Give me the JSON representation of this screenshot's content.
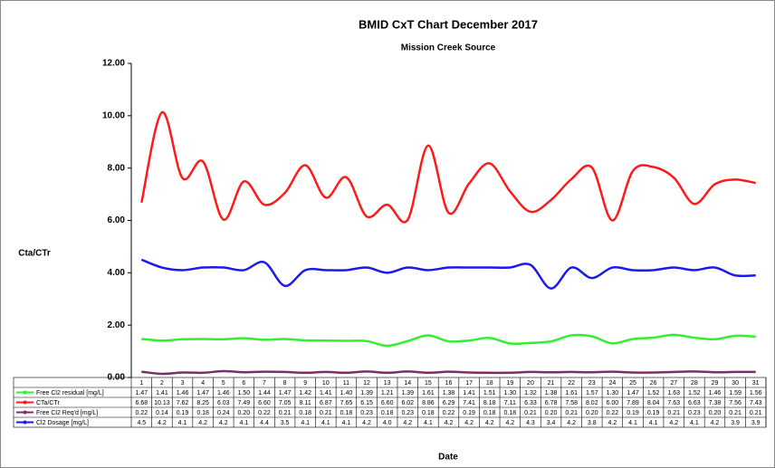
{
  "chart_data": {
    "type": "line",
    "title": "BMID CxT Chart December 2017",
    "subtitle": "Mission Creek Source",
    "y_label": "Cta/CTr",
    "x_label": "Date",
    "grid": false,
    "ylim": [
      0,
      12
    ],
    "yticks": [
      {
        "value": 0,
        "label": "0.00"
      },
      {
        "value": 2,
        "label": "2.00"
      },
      {
        "value": 4,
        "label": "4.00"
      },
      {
        "value": 6,
        "label": "6.00"
      },
      {
        "value": 8,
        "label": "8.00"
      },
      {
        "value": 10,
        "label": "10.00"
      },
      {
        "value": 12,
        "label": "12.00"
      }
    ],
    "categories": [
      "1",
      "2",
      "3",
      "4",
      "5",
      "6",
      "7",
      "8",
      "9",
      "10",
      "11",
      "12",
      "13",
      "14",
      "15",
      "16",
      "17",
      "18",
      "19",
      "20",
      "21",
      "22",
      "23",
      "24",
      "25",
      "26",
      "27",
      "28",
      "29",
      "30",
      "31"
    ],
    "series": [
      {
        "name": "Free Cl2 residual [mg/L]",
        "color": "#33ee33",
        "values": [
          1.47,
          1.41,
          1.46,
          1.47,
          1.46,
          1.5,
          1.44,
          1.47,
          1.42,
          1.41,
          1.4,
          1.39,
          1.21,
          1.39,
          1.61,
          1.38,
          1.41,
          1.51,
          1.3,
          1.32,
          1.38,
          1.61,
          1.57,
          1.3,
          1.47,
          1.52,
          1.63,
          1.52,
          1.46,
          1.59,
          1.56
        ],
        "value_labels": [
          "1.47",
          "1.41",
          "1.46",
          "1.47",
          "1.46",
          "1.50",
          "1.44",
          "1.47",
          "1.42",
          "1.41",
          "1.40",
          "1.39",
          "1.21",
          "1.39",
          "1.61",
          "1.38",
          "1.41",
          "1.51",
          "1.30",
          "1.32",
          "1.38",
          "1.61",
          "1.57",
          "1.30",
          "1.47",
          "1.52",
          "1.63",
          "1.52",
          "1.46",
          "1.59",
          "1.56"
        ]
      },
      {
        "name": "CTa/CTr",
        "color": "#ff1a1a",
        "values": [
          6.68,
          10.13,
          7.62,
          8.25,
          6.03,
          7.49,
          6.6,
          7.05,
          8.11,
          6.87,
          7.65,
          6.15,
          6.6,
          6.02,
          8.86,
          6.29,
          7.41,
          8.18,
          7.11,
          6.33,
          6.78,
          7.58,
          8.02,
          6.0,
          7.89,
          8.04,
          7.63,
          6.63,
          7.38,
          7.56,
          7.43
        ],
        "value_labels": [
          "6.68",
          "10.13",
          "7.62",
          "8.25",
          "6.03",
          "7.49",
          "6.60",
          "7.05",
          "8.11",
          "6.87",
          "7.65",
          "6.15",
          "6.60",
          "6.02",
          "8.86",
          "6.29",
          "7.41",
          "8.18",
          "7.11",
          "6.33",
          "6.78",
          "7.58",
          "8.02",
          "6.00",
          "7.89",
          "8.04",
          "7.63",
          "6.63",
          "7.38",
          "7.56",
          "7.43"
        ]
      },
      {
        "name": "Free Cl2 Req'd [mg/L]",
        "color": "#7a2e6b",
        "values": [
          0.22,
          0.14,
          0.19,
          0.18,
          0.24,
          0.2,
          0.22,
          0.21,
          0.18,
          0.21,
          0.18,
          0.23,
          0.18,
          0.23,
          0.18,
          0.22,
          0.19,
          0.18,
          0.18,
          0.21,
          0.2,
          0.21,
          0.2,
          0.22,
          0.19,
          0.19,
          0.21,
          0.23,
          0.2,
          0.21,
          0.21
        ],
        "value_labels": [
          "0.22",
          "0.14",
          "0.19",
          "0.18",
          "0.24",
          "0.20",
          "0.22",
          "0.21",
          "0.18",
          "0.21",
          "0.18",
          "0.23",
          "0.18",
          "0.23",
          "0.18",
          "0.22",
          "0.19",
          "0.18",
          "0.18",
          "0.21",
          "0.20",
          "0.21",
          "0.20",
          "0.22",
          "0.19",
          "0.19",
          "0.21",
          "0.23",
          "0.20",
          "0.21",
          "0.21"
        ]
      },
      {
        "name": "Cl2 Dosage [mg/L]",
        "color": "#1a1aee",
        "values": [
          4.5,
          4.2,
          4.1,
          4.2,
          4.2,
          4.1,
          4.4,
          3.5,
          4.1,
          4.1,
          4.1,
          4.2,
          4.0,
          4.2,
          4.1,
          4.2,
          4.2,
          4.2,
          4.2,
          4.3,
          3.4,
          4.2,
          3.8,
          4.2,
          4.1,
          4.1,
          4.2,
          4.1,
          4.2,
          3.9,
          3.9
        ],
        "value_labels": [
          "4.5",
          "4.2",
          "4.1",
          "4.2",
          "4.2",
          "4.1",
          "4.4",
          "3.5",
          "4.1",
          "4.1",
          "4.1",
          "4.2",
          "4.0",
          "4.2",
          "4.1",
          "4.2",
          "4.2",
          "4.2",
          "4.2",
          "4.3",
          "3.4",
          "4.2",
          "3.8",
          "4.2",
          "4.1",
          "4.1",
          "4.2",
          "4.1",
          "4.2",
          "3.9",
          "3.9"
        ]
      }
    ]
  }
}
